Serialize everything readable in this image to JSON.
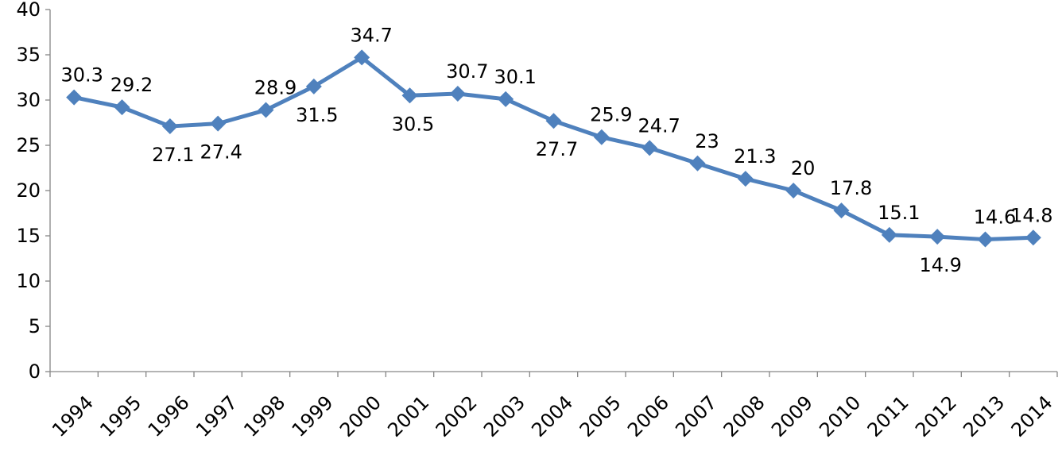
{
  "chart_data": {
    "type": "line",
    "x": [
      "1994",
      "1995",
      "1996",
      "1997",
      "1998",
      "1999",
      "2000",
      "2001",
      "2002",
      "2003",
      "2004",
      "2005",
      "2006",
      "2007",
      "2008",
      "2009",
      "2010",
      "2011",
      "2012",
      "2013",
      "2014"
    ],
    "series": [
      {
        "values": [
          30.3,
          29.2,
          27.1,
          27.4,
          28.9,
          31.5,
          34.7,
          30.5,
          30.7,
          30.1,
          27.7,
          25.9,
          24.7,
          23,
          21.3,
          20,
          17.8,
          15.1,
          14.9,
          14.6,
          14.8
        ],
        "data_labels": [
          "30.3",
          "29.2",
          "27.1",
          "27.4",
          "28.9",
          "31.5",
          "34.7",
          "30.5",
          "30.7",
          "30.1",
          "27.7",
          "25.9",
          "24.7",
          "23",
          "21.3",
          "20",
          "17.8",
          "15.1",
          "14.9",
          "14.6",
          "14.8"
        ],
        "color": "#4f81bd",
        "marker": "diamond"
      }
    ],
    "y_ticks": [
      "0",
      "5",
      "10",
      "15",
      "20",
      "25",
      "30",
      "35",
      "40"
    ],
    "ylim": [
      0,
      40
    ],
    "title": "",
    "xlabel": "",
    "ylabel": "",
    "grid": false,
    "legend": "none"
  }
}
